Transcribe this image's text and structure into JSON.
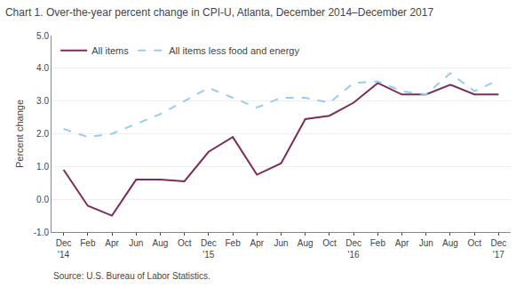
{
  "chart_data": {
    "type": "line",
    "title": "Chart 1. Over-the-year percent change in CPI-U, Atlanta, December 2014–December 2017",
    "y_label": "Percent change",
    "annotations": [
      "Source: U.S. Bureau of Labor Statistics."
    ],
    "categories": [
      "Dec '14",
      "Feb",
      "Apr",
      "Jun",
      "Aug",
      "Oct",
      "Dec '15",
      "Feb",
      "Apr",
      "Jun",
      "Aug",
      "Oct",
      "Dec '16",
      "Feb",
      "Apr",
      "Jun",
      "Aug",
      "Oct",
      "Dec '17"
    ],
    "series": [
      {
        "name": "All items",
        "color": "#7B2D5A",
        "line_style": "solid",
        "values": [
          0.9,
          -0.2,
          -0.5,
          0.6,
          0.6,
          0.55,
          1.45,
          1.9,
          0.75,
          1.1,
          2.45,
          2.55,
          2.95,
          3.55,
          3.2,
          3.2,
          3.5,
          3.2,
          3.2
        ]
      },
      {
        "name": "All items less food and energy",
        "color": "#99CCEE",
        "line_style": "dashed",
        "values": [
          2.15,
          1.9,
          2.0,
          2.3,
          2.6,
          3.0,
          3.4,
          3.1,
          2.8,
          3.1,
          3.1,
          2.95,
          3.55,
          3.6,
          3.3,
          3.2,
          3.85,
          3.3,
          3.65
        ]
      }
    ],
    "ylim": [
      -1.0,
      5.0
    ],
    "yticks": [
      {
        "value": -1.0,
        "label": "-1.0"
      },
      {
        "value": 0.0,
        "label": "0.0"
      },
      {
        "value": 1.0,
        "label": "1.0"
      },
      {
        "value": 2.0,
        "label": "2.0"
      },
      {
        "value": 3.0,
        "label": "3.0"
      },
      {
        "value": 4.0,
        "label": "4.0"
      },
      {
        "value": 5.0,
        "label": "5.0"
      }
    ],
    "grid": true,
    "legend": "upper left"
  }
}
